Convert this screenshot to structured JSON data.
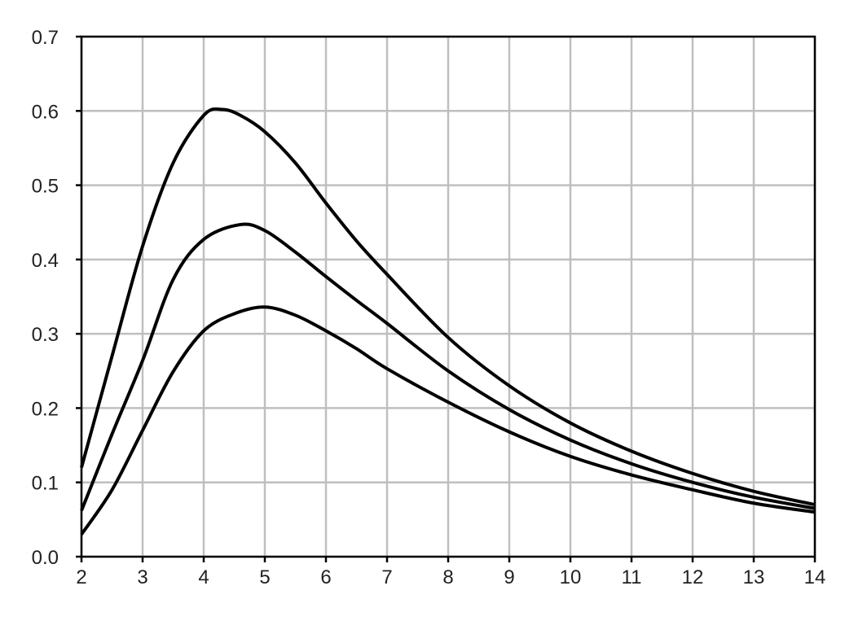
{
  "chart_data": {
    "type": "line",
    "title": "",
    "xlabel": "",
    "ylabel": "",
    "xlim": [
      2,
      14
    ],
    "ylim": [
      0,
      0.7
    ],
    "grid": true,
    "line_color": "#000000",
    "grid_color": "#bfbfbf",
    "x_ticks": [
      "2",
      "3",
      "4",
      "5",
      "6",
      "7",
      "8",
      "9",
      "10",
      "11",
      "12",
      "13",
      "14"
    ],
    "y_ticks": [
      "0.0",
      "0.1",
      "0.2",
      "0.3",
      "0.4",
      "0.5",
      "0.6",
      "0.7"
    ],
    "series": [
      {
        "points": [
          [
            2,
            0.12
          ],
          [
            2.5,
            0.27
          ],
          [
            3,
            0.418
          ],
          [
            3.5,
            0.53
          ],
          [
            4,
            0.594
          ],
          [
            4.3,
            0.602
          ],
          [
            4.6,
            0.594
          ],
          [
            5,
            0.572
          ],
          [
            5.5,
            0.53
          ],
          [
            6,
            0.476
          ],
          [
            6.5,
            0.425
          ],
          [
            7,
            0.38
          ],
          [
            8,
            0.295
          ],
          [
            9,
            0.23
          ],
          [
            10,
            0.18
          ],
          [
            11,
            0.142
          ],
          [
            12,
            0.112
          ],
          [
            13,
            0.088
          ],
          [
            14,
            0.07
          ]
        ]
      },
      {
        "points": [
          [
            2,
            0.062
          ],
          [
            2.5,
            0.165
          ],
          [
            3,
            0.264
          ],
          [
            3.5,
            0.373
          ],
          [
            4,
            0.427
          ],
          [
            4.6,
            0.447
          ],
          [
            5,
            0.439
          ],
          [
            5.5,
            0.41
          ],
          [
            6,
            0.377
          ],
          [
            6.5,
            0.345
          ],
          [
            7,
            0.314
          ],
          [
            8,
            0.25
          ],
          [
            9,
            0.198
          ],
          [
            10,
            0.157
          ],
          [
            11,
            0.125
          ],
          [
            12,
            0.1
          ],
          [
            13,
            0.08
          ],
          [
            14,
            0.065
          ]
        ]
      },
      {
        "points": [
          [
            2,
            0.03
          ],
          [
            2.5,
            0.09
          ],
          [
            3,
            0.17
          ],
          [
            3.5,
            0.249
          ],
          [
            4,
            0.304
          ],
          [
            4.5,
            0.327
          ],
          [
            5,
            0.336
          ],
          [
            5.5,
            0.325
          ],
          [
            6,
            0.304
          ],
          [
            6.5,
            0.28
          ],
          [
            7,
            0.253
          ],
          [
            8,
            0.208
          ],
          [
            9,
            0.168
          ],
          [
            10,
            0.135
          ],
          [
            11,
            0.11
          ],
          [
            12,
            0.09
          ],
          [
            13,
            0.072
          ],
          [
            14,
            0.06
          ]
        ]
      }
    ]
  }
}
